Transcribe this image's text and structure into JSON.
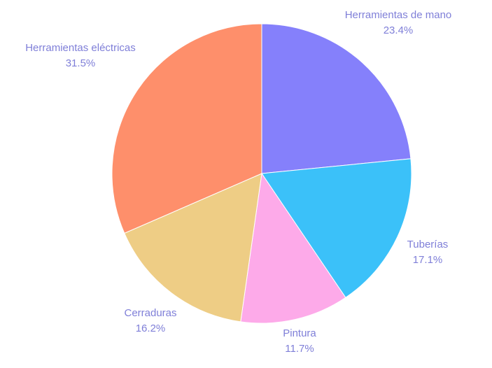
{
  "chart_data": {
    "type": "pie",
    "title": "",
    "slices": [
      {
        "label": "Herramientas de mano",
        "value": 23.4,
        "value_label": "23.4%",
        "color": "#8580fb"
      },
      {
        "label": "Tuberías",
        "value": 17.1,
        "value_label": "17.1%",
        "color": "#3bc1f9"
      },
      {
        "label": "Pintura",
        "value": 11.7,
        "value_label": "11.7%",
        "color": "#fdaae9"
      },
      {
        "label": "Cerraduras",
        "value": 16.2,
        "value_label": "16.2%",
        "color": "#eecd85"
      },
      {
        "label": "Herramientas eléctricas",
        "value": 31.5,
        "value_label": "31.5%",
        "color": "#fe8f6b"
      }
    ],
    "start_angle": "12 o'clock",
    "direction": "clockwise",
    "legend": "none"
  }
}
